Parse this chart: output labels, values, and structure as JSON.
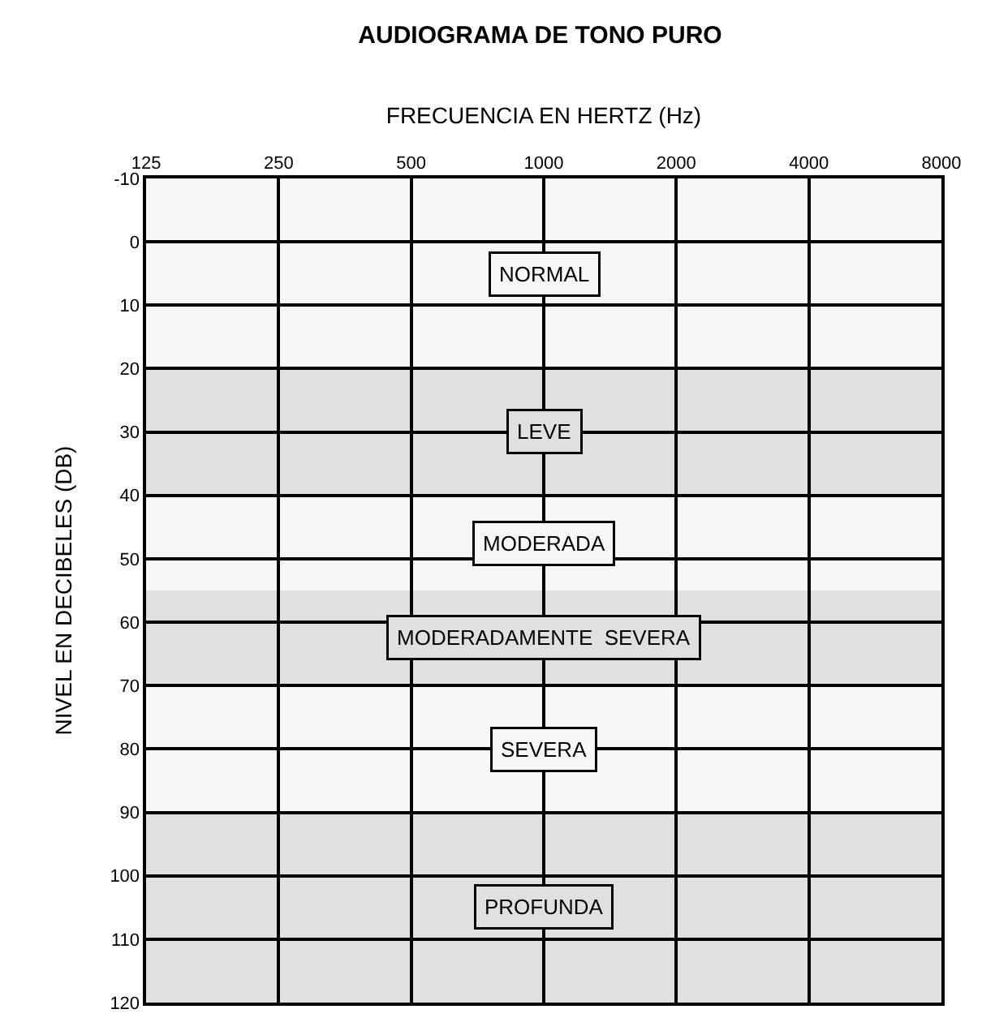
{
  "chart_data": {
    "type": "line",
    "title": "AUDIOGRAMA DE TONO PURO",
    "xlabel": "FRECUENCIA EN HERTZ (Hz)",
    "ylabel": "NIVEL EN DECIBELES (DB)",
    "log": "x",
    "xlim": [
      125,
      8000
    ],
    "xticks": [
      125,
      250,
      500,
      1000,
      2000,
      4000,
      8000
    ],
    "ylim": [
      120,
      -10
    ],
    "yticks": [
      -10,
      0,
      10,
      20,
      30,
      40,
      50,
      60,
      70,
      80,
      90,
      100,
      110,
      120
    ],
    "grid": true,
    "bands": [
      {
        "axis": "y",
        "from": -10,
        "to": 20,
        "label": "NORMAL",
        "color": "#f7f7f7"
      },
      {
        "axis": "y",
        "from": 20,
        "to": 40,
        "label": "LEVE",
        "color": "#e0e0e0"
      },
      {
        "axis": "y",
        "from": 40,
        "to": 55,
        "label": "MODERADA",
        "color": "#f7f7f7"
      },
      {
        "axis": "y",
        "from": 55,
        "to": 70,
        "label": "MODERADAMENTE  SEVERA",
        "color": "#e0e0e0"
      },
      {
        "axis": "y",
        "from": 70,
        "to": 90,
        "label": "SEVERA",
        "color": "#f7f7f7"
      },
      {
        "axis": "y",
        "from": 90,
        "to": 120,
        "label": "PROFUNDA",
        "color": "#e0e0e0"
      }
    ]
  }
}
